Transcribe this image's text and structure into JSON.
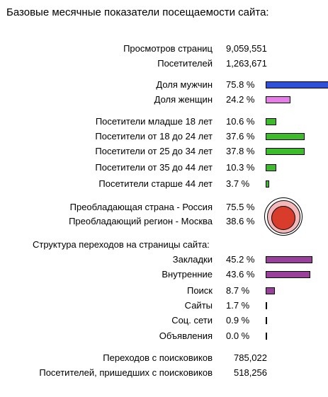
{
  "title": "Базовые месячные показатели посещаемости сайта:",
  "traffic": {
    "pageviews_label": "Просмотров страниц",
    "pageviews_value": "9,059,551",
    "visitors_label": "Посетителей",
    "visitors_value": "1,263,671"
  },
  "gender": [
    {
      "label": "Доля мужчин",
      "value": "75.8 %",
      "pct": 75.8,
      "color": "#2f4fd8"
    },
    {
      "label": "Доля женщин",
      "value": "24.2 %",
      "pct": 24.2,
      "color": "#e77ce8"
    }
  ],
  "age": [
    {
      "label": "Посетители младше 18 лет",
      "value": "10.6 %",
      "pct": 10.6,
      "color": "#3dbc2b"
    },
    {
      "label": "Посетители от 18 до 24 лет",
      "value": "37.6 %",
      "pct": 37.6,
      "color": "#3dbc2b"
    },
    {
      "label": "Посетители от 25 до 34 лет",
      "value": "37.8 %",
      "pct": 37.8,
      "color": "#3dbc2b"
    },
    {
      "label": "Посетители от 35 до 44 лет",
      "value": "10.3 %",
      "pct": 10.3,
      "color": "#3dbc2b"
    },
    {
      "label": "Посетители старше 44 лет",
      "value": "3.7 %",
      "pct": 3.7,
      "color": "#3dbc2b"
    }
  ],
  "geo": {
    "country_label": "Преобладающая страна - Россия",
    "country_value": "75.5 %",
    "country_pct": 75.5,
    "region_label": "Преобладающий регион - Москва",
    "region_value": "38.6 %",
    "region_pct": 38.6,
    "country_color": "#f4b8b8",
    "region_color": "#d83c2a"
  },
  "referrals": {
    "heading": "Структура переходов на страницы сайта:",
    "color": "#9b3f9c",
    "items": [
      {
        "label": "Закладки",
        "value": "45.2 %",
        "pct": 45.2
      },
      {
        "label": "Внутренние",
        "value": "43.6 %",
        "pct": 43.6
      },
      {
        "label": "Поиск",
        "value": "8.7 %",
        "pct": 8.7
      },
      {
        "label": "Сайты",
        "value": "1.7 %",
        "pct": 1.7
      },
      {
        "label": "Соц. сети",
        "value": "0.9 %",
        "pct": 0.9
      },
      {
        "label": "Объявления",
        "value": "0.0 %",
        "pct": 0.0
      }
    ]
  },
  "search": {
    "transitions_label": "Переходов с поисковиков",
    "transitions_value": "785,022",
    "visitors_label": "Посетителей, пришедших с поисковиков",
    "visitors_value": "518,256"
  }
}
